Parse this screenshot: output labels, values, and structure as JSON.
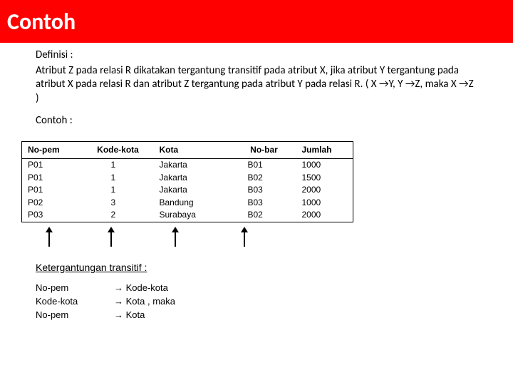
{
  "header": {
    "title": "Contoh"
  },
  "definisi": {
    "label": "Definisi :",
    "text": "Atribut Z pada relasi R dikatakan tergantung transitif pada atribut X, jika atribut Y tergantung pada atribut X  pada relasi R dan atribut Z tergantung pada atribut Y pada relasi R.  ( X →Y, Y →Z,  maka  X →Z )"
  },
  "contoh_label": "Contoh :",
  "table": {
    "columns": [
      "No-pem",
      "Kode-kota",
      "Kota",
      "No-bar",
      "Jumlah"
    ],
    "rows": [
      [
        "P01",
        "1",
        "Jakarta",
        "B01",
        "1000"
      ],
      [
        "P01",
        "1",
        "Jakarta",
        "B02",
        "1500"
      ],
      [
        "P01",
        "1",
        "Jakarta",
        "B03",
        "2000"
      ],
      [
        "P02",
        "3",
        "Bandung",
        "B03",
        "1000"
      ],
      [
        "P03",
        "2",
        "Surabaya",
        "B02",
        "2000"
      ]
    ],
    "arrow_x_positions": [
      38,
      125,
      215,
      312
    ]
  },
  "ketergantungan": {
    "label": "Ketergantungan transitif :",
    "lines": [
      {
        "left": "No-pem",
        "right": "→ Kode-kota"
      },
      {
        "left": "Kode-kota",
        "right": "→ Kota , maka"
      },
      {
        "left": "No-pem",
        "right": "→ Kota"
      }
    ]
  }
}
